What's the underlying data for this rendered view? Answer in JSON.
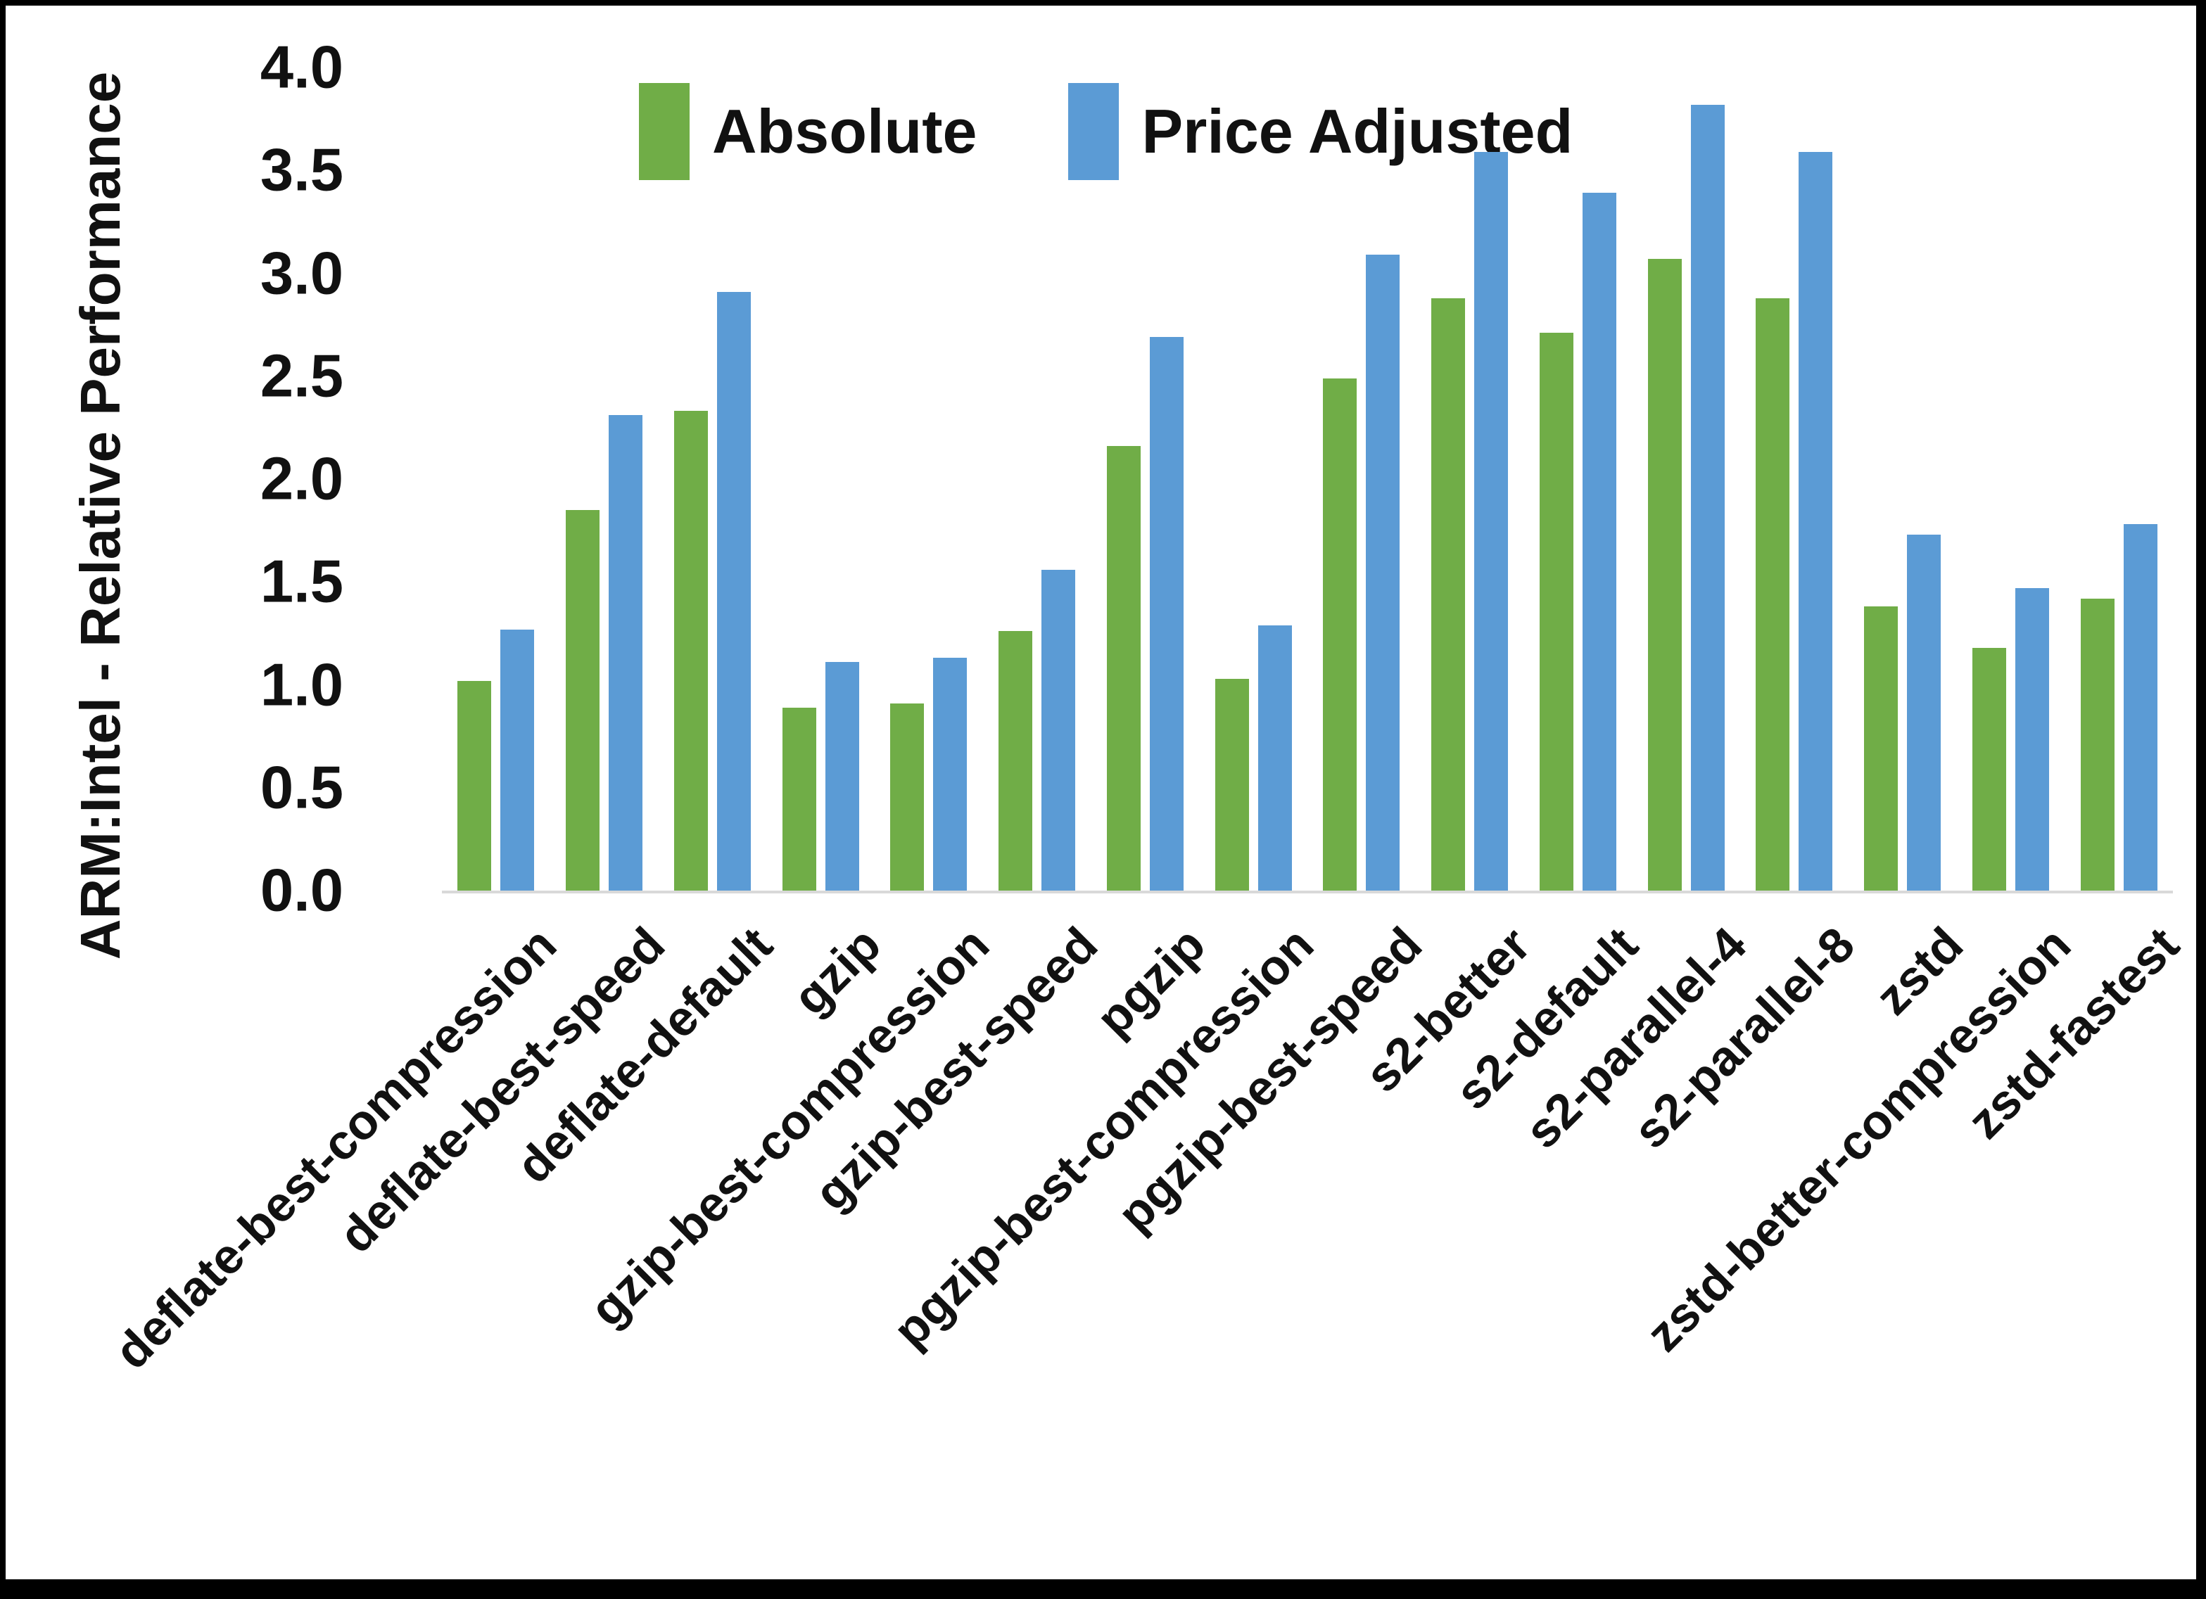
{
  "figure": {
    "y_axis_title": "ARM:Intel - Relative Performance"
  },
  "chart_data": {
    "type": "bar",
    "title": "",
    "xlabel": "",
    "ylabel": "ARM:Intel - Relative Performance",
    "ylim": [
      0.0,
      4.0
    ],
    "y_ticks": [
      "0.0",
      "0.5",
      "1.0",
      "1.5",
      "2.0",
      "2.5",
      "3.0",
      "3.5",
      "4.0"
    ],
    "grid": false,
    "legend_position": "top-center",
    "categories": [
      "deflate-best-compression",
      "deflate-best-speed",
      "deflate-default",
      "gzip",
      "gzip-best-compression",
      "gzip-best-speed",
      "pgzip",
      "pgzip-best-compression",
      "pgzip-best-speed",
      "s2-better",
      "s2-default",
      "s2-parallel-4",
      "s2-parallel-8",
      "zstd",
      "zstd-better-compression",
      "zstd-fastest"
    ],
    "series": [
      {
        "name": "Absolute",
        "color": "#70AD47",
        "values": [
          1.02,
          1.85,
          2.33,
          0.89,
          0.91,
          1.26,
          2.16,
          1.03,
          2.49,
          2.88,
          2.71,
          3.07,
          2.88,
          1.38,
          1.18,
          1.42
        ]
      },
      {
        "name": "Price Adjusted",
        "color": "#5B9BD5",
        "values": [
          1.27,
          2.31,
          2.91,
          1.11,
          1.13,
          1.56,
          2.69,
          1.29,
          3.09,
          3.59,
          3.39,
          3.82,
          3.59,
          1.73,
          1.47,
          1.78
        ]
      }
    ]
  }
}
